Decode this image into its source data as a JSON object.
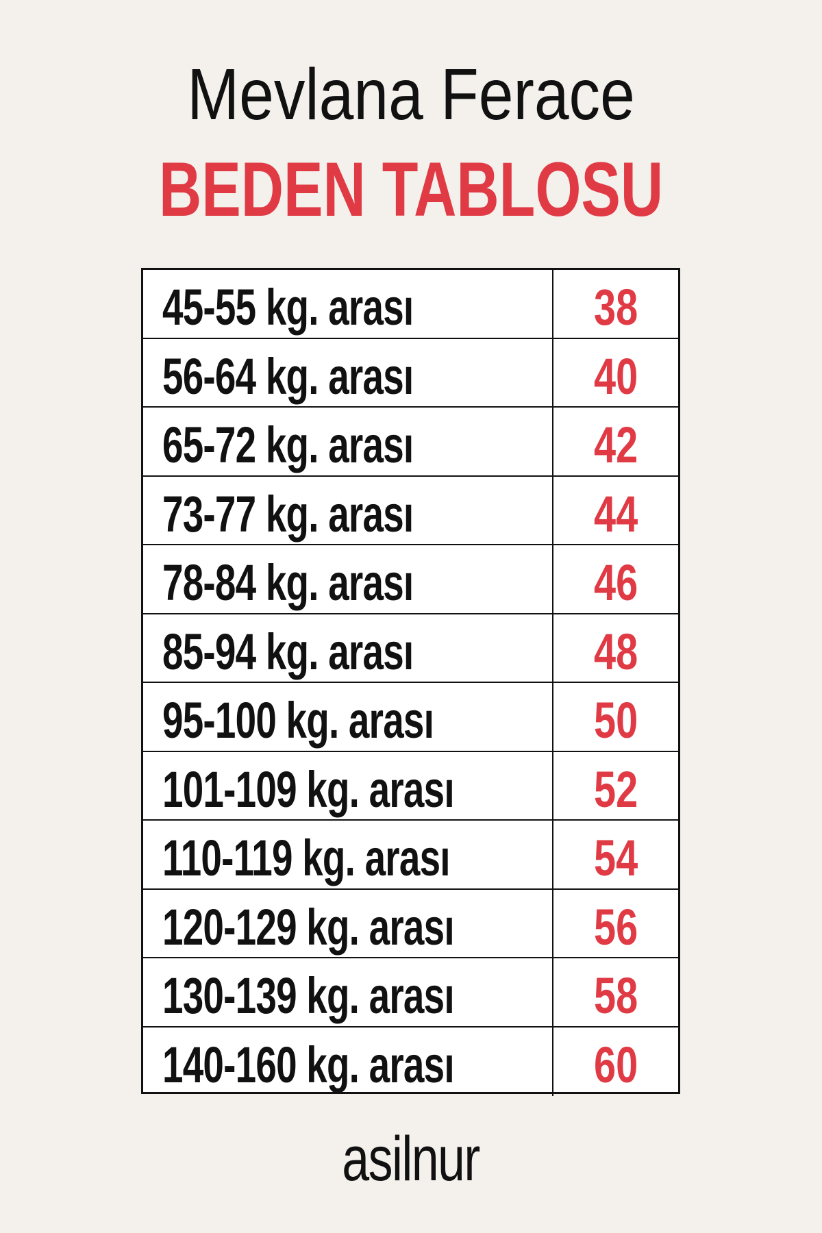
{
  "header": {
    "product_name": "Mevlana Ferace",
    "chart_title": "BEDEN TABLOSU"
  },
  "size_table": {
    "rows": [
      {
        "range": "45-55 kg. arası",
        "size": "38"
      },
      {
        "range": "56-64 kg. arası",
        "size": "40"
      },
      {
        "range": "65-72 kg. arası",
        "size": "42"
      },
      {
        "range": "73-77 kg. arası",
        "size": "44"
      },
      {
        "range": "78-84 kg. arası",
        "size": "46"
      },
      {
        "range": "85-94 kg. arası",
        "size": "48"
      },
      {
        "range": "95-100 kg. arası",
        "size": "50"
      },
      {
        "range": "101-109 kg. arası",
        "size": "52"
      },
      {
        "range": "110-119 kg. arası",
        "size": "54"
      },
      {
        "range": "120-129 kg. arası",
        "size": "56"
      },
      {
        "range": "130-139 kg. arası",
        "size": "58"
      },
      {
        "range": "140-160 kg. arası",
        "size": "60"
      }
    ]
  },
  "brand": {
    "logo_text": "asilnur"
  },
  "colors": {
    "accent": "#e03a45",
    "background": "#f4f1ec",
    "text": "#111111"
  }
}
